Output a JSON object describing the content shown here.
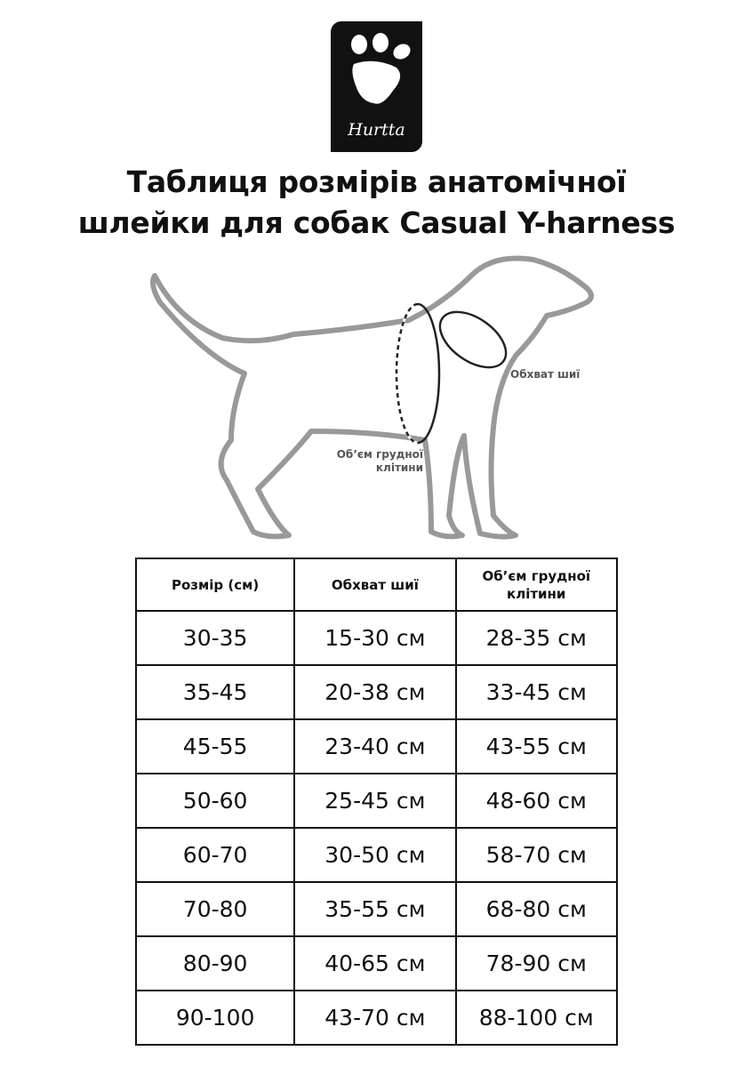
{
  "logo": {
    "brand": "Hurtta"
  },
  "title": {
    "line1": "Таблиця розмірів анатомічної",
    "line2": "шлейки для собак Casual Y-harness"
  },
  "diagram": {
    "neck_label": "Обхват шиї",
    "chest_label_line1": "Об’єм грудної",
    "chest_label_line2": "клітини"
  },
  "table": {
    "headers": [
      "Розмір (см)",
      "Обхват шиї",
      "Об’єм грудної клітини"
    ],
    "rows": [
      [
        "30-35",
        "15-30 см",
        "28-35 см"
      ],
      [
        "35-45",
        "20-38 см",
        "33-45 см"
      ],
      [
        "45-55",
        "23-40 см",
        "43-55 см"
      ],
      [
        "50-60",
        "25-45 см",
        "48-60 см"
      ],
      [
        "60-70",
        "30-50 см",
        "58-70 см"
      ],
      [
        "70-80",
        "35-55 см",
        "68-80 см"
      ],
      [
        "80-90",
        "40-65 см",
        "78-90 см"
      ],
      [
        "90-100",
        "43-70 см",
        "88-100 см"
      ]
    ]
  }
}
